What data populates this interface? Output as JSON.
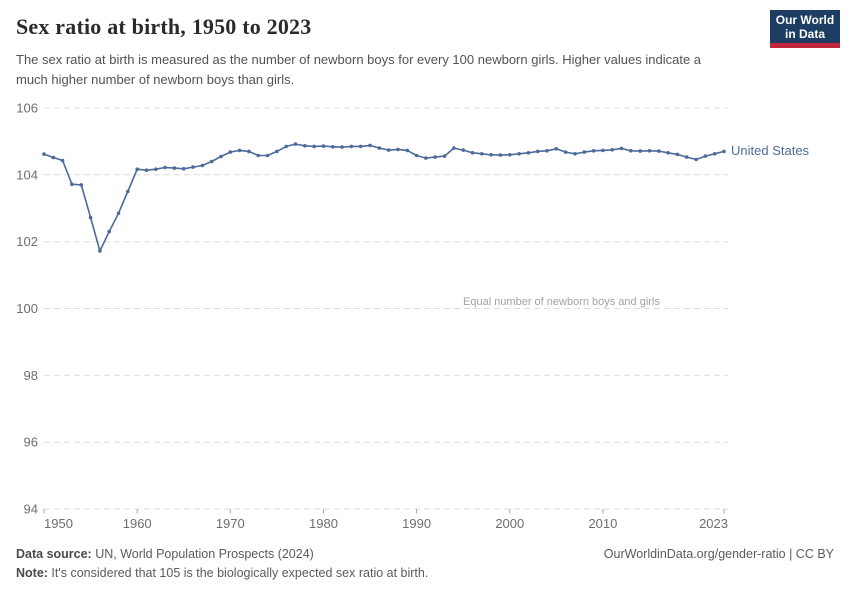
{
  "header": {
    "title": "Sex ratio at birth, 1950 to 2023",
    "subtitle": "The sex ratio at birth is measured as the number of newborn boys for every 100 newborn girls. Higher values indicate a much higher number of newborn boys than girls."
  },
  "logo": {
    "line1": "Our World",
    "line2": "in Data",
    "bg_color": "#1d3d63",
    "stripe_color": "#c0273e"
  },
  "chart_data": {
    "type": "line",
    "title": "Sex ratio at birth, 1950 to 2023",
    "xlabel": "",
    "ylabel": "",
    "ylim": [
      94,
      106
    ],
    "yticks": [
      94,
      96,
      98,
      100,
      102,
      104,
      106
    ],
    "xticks": [
      1950,
      1960,
      1970,
      1980,
      1990,
      2000,
      2010,
      2023
    ],
    "grid": "horizontal-dashed",
    "legend_position": "end-of-line-label",
    "annotation": "Equal number of newborn boys and girls",
    "annotation_y": 100,
    "x": [
      1950,
      1951,
      1952,
      1953,
      1954,
      1955,
      1956,
      1957,
      1958,
      1959,
      1960,
      1961,
      1962,
      1963,
      1964,
      1965,
      1966,
      1967,
      1968,
      1969,
      1970,
      1971,
      1972,
      1973,
      1974,
      1975,
      1976,
      1977,
      1978,
      1979,
      1980,
      1981,
      1982,
      1983,
      1984,
      1985,
      1986,
      1987,
      1988,
      1989,
      1990,
      1991,
      1992,
      1993,
      1994,
      1995,
      1996,
      1997,
      1998,
      1999,
      2000,
      2001,
      2002,
      2003,
      2004,
      2005,
      2006,
      2007,
      2008,
      2009,
      2010,
      2011,
      2012,
      2013,
      2014,
      2015,
      2016,
      2017,
      2018,
      2019,
      2020,
      2021,
      2022,
      2023
    ],
    "series": [
      {
        "name": "United States",
        "color": "#4c6a9c",
        "values": [
          104.62,
          104.52,
          104.43,
          103.72,
          103.7,
          102.72,
          101.72,
          102.3,
          102.85,
          103.5,
          104.17,
          104.14,
          104.17,
          104.22,
          104.2,
          104.18,
          104.23,
          104.28,
          104.4,
          104.55,
          104.68,
          104.73,
          104.7,
          104.58,
          104.58,
          104.7,
          104.85,
          104.92,
          104.87,
          104.85,
          104.86,
          104.84,
          104.83,
          104.85,
          104.85,
          104.88,
          104.8,
          104.74,
          104.76,
          104.73,
          104.58,
          104.5,
          104.53,
          104.56,
          104.8,
          104.74,
          104.66,
          104.63,
          104.6,
          104.59,
          104.6,
          104.63,
          104.66,
          104.7,
          104.72,
          104.78,
          104.68,
          104.63,
          104.68,
          104.72,
          104.73,
          104.75,
          104.79,
          104.72,
          104.71,
          104.72,
          104.71,
          104.66,
          104.61,
          104.53,
          104.46,
          104.56,
          104.63,
          104.7
        ]
      }
    ],
    "colors": {
      "gridline": "#dcdcdc",
      "tick_label": "#6e6e6e",
      "tick_mark": "#a5a5a5",
      "annotation": "#a3a3a3"
    }
  },
  "footer": {
    "datasource_label": "Data source:",
    "datasource_text": " UN, World Population Prospects (2024)",
    "rights": "OurWorldinData.org/gender-ratio | CC BY",
    "note_label": "Note:",
    "note_text": " It's considered that 105 is the biologically expected sex ratio at birth."
  }
}
